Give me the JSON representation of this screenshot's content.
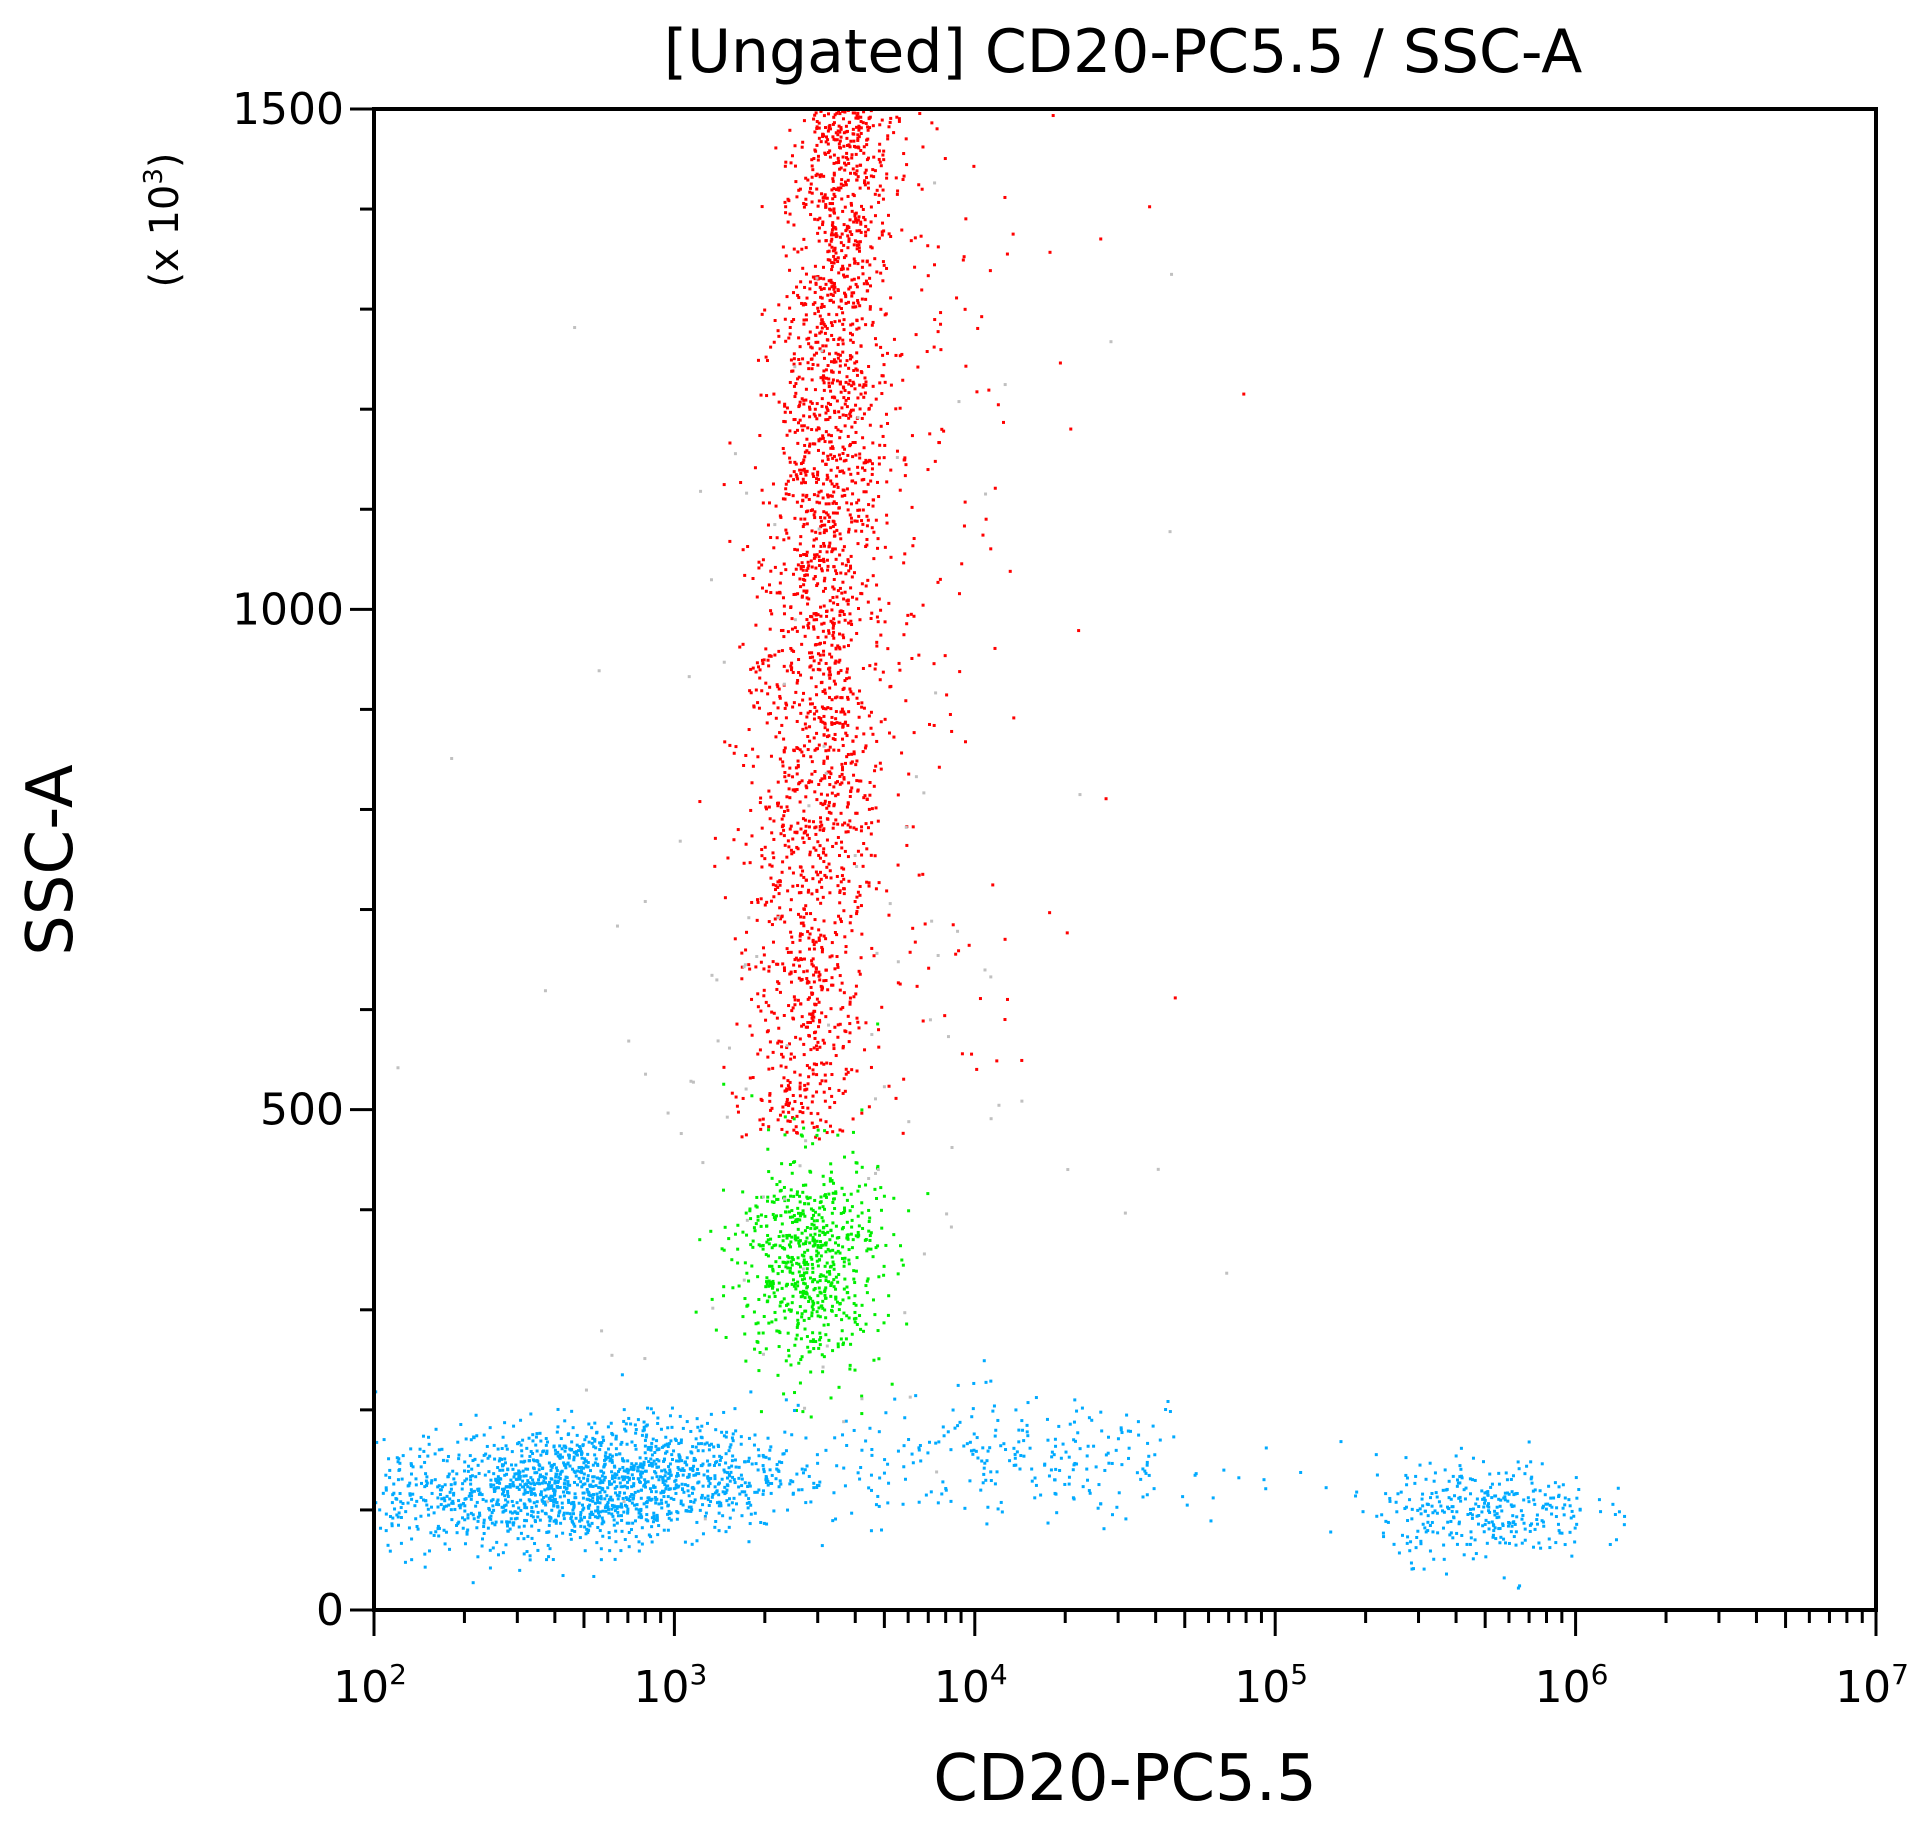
{
  "chart_data": {
    "type": "scatter",
    "title": "[Ungated] CD20-PC5.5 / SSC-A",
    "xlabel": "CD20-PC5.5",
    "ylabel": "SSC-A",
    "y_multiplier_label": "(x 10",
    "y_multiplier_exp": "3",
    "y_multiplier_close": ")",
    "x_scale": "log",
    "xlim": [
      100,
      10000000
    ],
    "ylim": [
      0,
      1500
    ],
    "y_units": "x 10^3",
    "x_ticks": [
      {
        "base": "10",
        "exp": "2"
      },
      {
        "base": "10",
        "exp": "3"
      },
      {
        "base": "10",
        "exp": "4"
      },
      {
        "base": "10",
        "exp": "5"
      },
      {
        "base": "10",
        "exp": "6"
      },
      {
        "base": "10",
        "exp": "7"
      }
    ],
    "y_ticks": [
      "0",
      "500",
      "1000",
      "1500"
    ],
    "grid": false,
    "legend": "none",
    "populations": [
      {
        "color": "#ff0000",
        "x_center": 3000,
        "y_center": 900,
        "x_log_sd": 0.12,
        "y_range": [
          470,
          1500
        ],
        "points": 2600
      },
      {
        "color": "#00ee00",
        "x_center": 2800,
        "y_center": 350,
        "x_log_sd": 0.12,
        "y_sd": 55,
        "points": 700
      },
      {
        "color": "#00aaff",
        "x_center": 500,
        "y_center": 125,
        "x_log_sd": 0.35,
        "y_sd": 30,
        "points": 1700
      },
      {
        "color": "#00aaff",
        "x_center": 500000,
        "y_center": 100,
        "x_log_sd": 0.18,
        "y_sd": 25,
        "points": 350
      },
      {
        "color": "#00aaff",
        "x_center": 15000,
        "y_center": 150,
        "x_log_sd": 0.35,
        "y_sd": 30,
        "points": 250
      },
      {
        "color": "#c0c0c0",
        "x_center": 3000,
        "y_center": 600,
        "x_log_sd": 0.5,
        "y_sd": 350,
        "points": 120
      }
    ]
  }
}
